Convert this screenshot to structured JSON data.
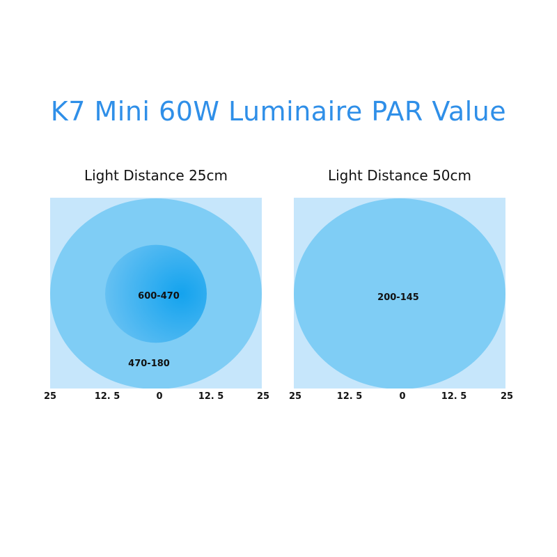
{
  "title": "K7 Mini 60W Luminaire PAR Value",
  "colors": {
    "title": "#2f8fe8",
    "background_square": "#c6e6fb",
    "outer_zone": "#7fcdf5",
    "inner_zone_light": "#6ac2f3",
    "inner_zone_dark": "#14a3ee"
  },
  "chart_data": [
    {
      "type": "heatmap",
      "title": "Light Distance 25cm",
      "x_ticks": [
        "25",
        "12. 5",
        "0",
        "12. 5",
        "25"
      ],
      "zones": [
        {
          "label": "470-180",
          "radius": 25
        },
        {
          "label": "600-470",
          "radius": 12
        }
      ]
    },
    {
      "type": "heatmap",
      "title": "Light Distance 50cm",
      "x_ticks": [
        "25",
        "12. 5",
        "0",
        "12. 5",
        "25"
      ],
      "zones": [
        {
          "label": "200-145",
          "radius": 25
        }
      ]
    }
  ]
}
